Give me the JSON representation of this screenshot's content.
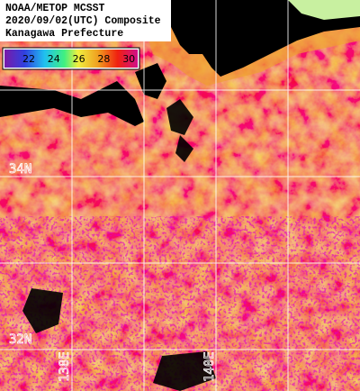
{
  "header": {
    "lines": [
      "NOAA/METOP MCSST",
      "2020/09/02(UTC) Composite",
      "Kanagawa Prefecture"
    ]
  },
  "colorbar": {
    "ticks": [
      22,
      24,
      26,
      28,
      30
    ]
  },
  "grid_labels": {
    "latitude": [
      "34N",
      "32N"
    ],
    "longitude": [
      "138E",
      "140E"
    ]
  }
}
